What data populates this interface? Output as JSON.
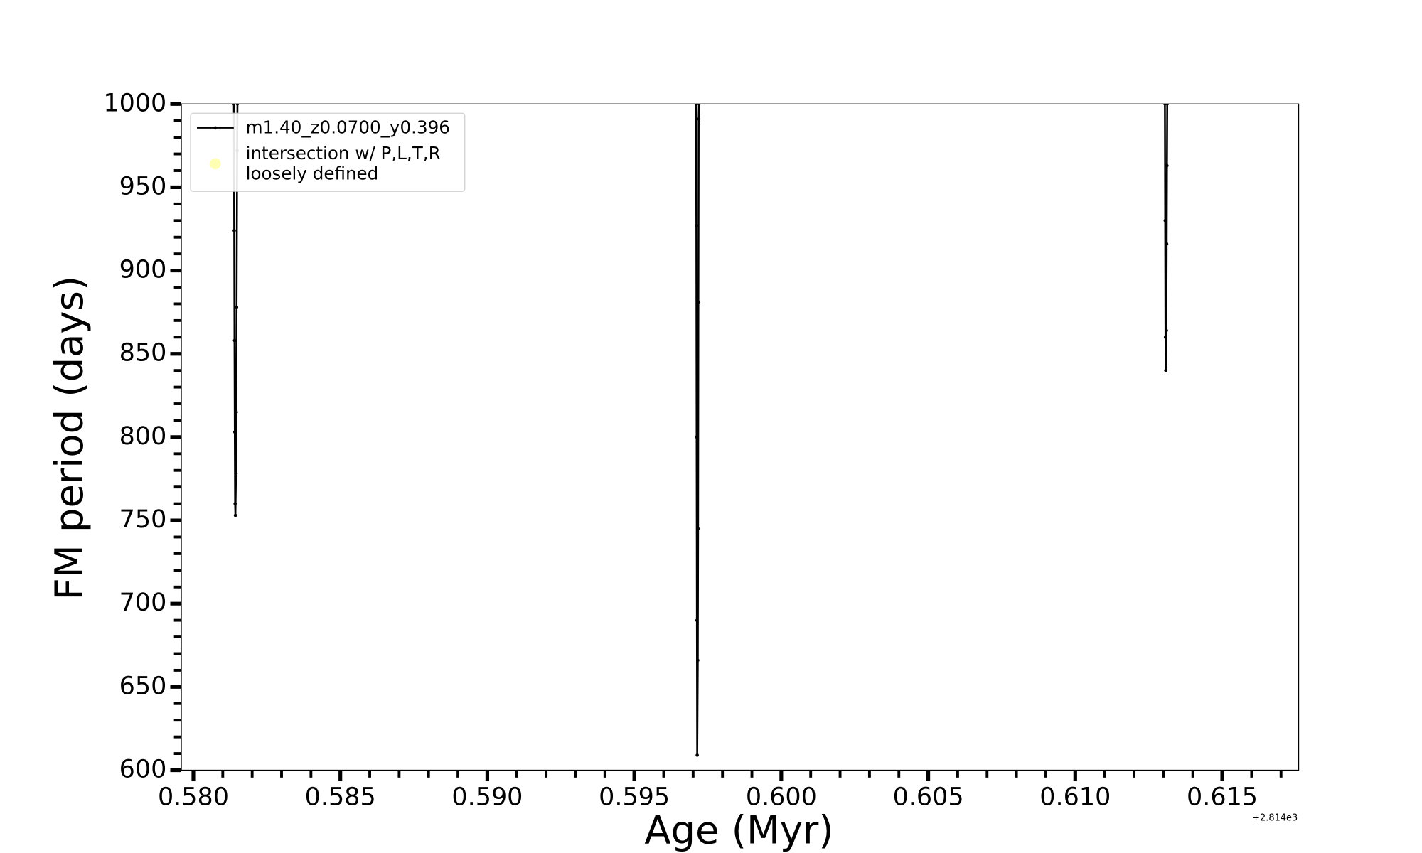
{
  "chart_data": {
    "type": "line",
    "xlabel": "Age (Myr)",
    "ylabel": "FM period (days)",
    "x_offset_text": "+2.814e3",
    "xlim": [
      0.57959,
      0.6176
    ],
    "ylim": [
      600,
      1000
    ],
    "xticks": [
      {
        "value": 0.58,
        "label": "0.580"
      },
      {
        "value": 0.585,
        "label": "0.585"
      },
      {
        "value": 0.59,
        "label": "0.590"
      },
      {
        "value": 0.595,
        "label": "0.595"
      },
      {
        "value": 0.6,
        "label": "0.600"
      },
      {
        "value": 0.605,
        "label": "0.605"
      },
      {
        "value": 0.61,
        "label": "0.610"
      },
      {
        "value": 0.615,
        "label": "0.615"
      }
    ],
    "yticks": [
      600,
      650,
      700,
      750,
      800,
      850,
      900,
      950,
      1000
    ],
    "xminorticks": [
      0.581,
      0.582,
      0.583,
      0.584,
      0.586,
      0.587,
      0.588,
      0.589,
      0.591,
      0.592,
      0.593,
      0.594,
      0.596,
      0.597,
      0.598,
      0.599,
      0.601,
      0.602,
      0.603,
      0.604,
      0.606,
      0.607,
      0.608,
      0.609,
      0.611,
      0.612,
      0.613,
      0.614,
      0.616,
      0.617
    ],
    "yminorticks": [
      610,
      620,
      630,
      640,
      660,
      670,
      680,
      690,
      710,
      720,
      730,
      740,
      760,
      770,
      780,
      790,
      810,
      820,
      830,
      840,
      860,
      870,
      880,
      890,
      910,
      920,
      930,
      940,
      960,
      970,
      980,
      990
    ],
    "legend": "upper left",
    "series": [
      {
        "name": "m1.40_z0.0700_y0.396",
        "color": "#000000",
        "x": [
          0.58138,
          0.58139,
          0.5814,
          0.58141,
          0.58142,
          0.58143,
          0.58145,
          0.58146,
          0.58147,
          0.58149,
          0.5815,
          null,
          0.5971,
          0.59711,
          0.59712,
          0.59713,
          0.59714,
          0.59716,
          0.59717,
          0.59718,
          0.59719,
          0.5972,
          null,
          0.61305,
          0.61306,
          0.61307,
          0.61308,
          0.6131,
          0.61311,
          0.61312,
          0.61313
        ],
        "values": [
          1000,
          924,
          858,
          803,
          760,
          753,
          778,
          815,
          878,
          972,
          1000,
          null,
          1000,
          927,
          800,
          690,
          609,
          666,
          745,
          881,
          991,
          1000,
          null,
          1000,
          930,
          860,
          840,
          864,
          916,
          963,
          1000
        ]
      },
      {
        "name": "intersection w/ P,L,T,R\nloosely defined",
        "color": "#ffffb3",
        "type": "scatter",
        "x": [],
        "values": []
      }
    ]
  }
}
